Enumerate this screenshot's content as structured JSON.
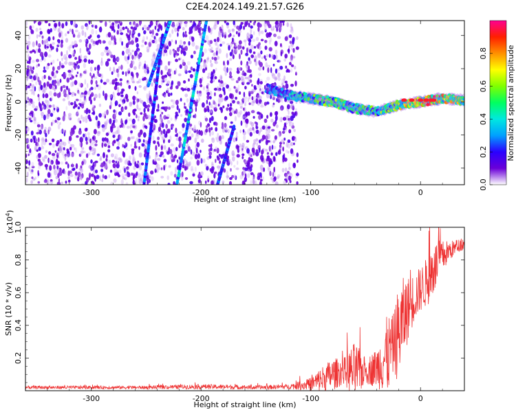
{
  "title": "C2E4.2024.149.21.57.G26",
  "chart_data": [
    {
      "type": "heatmap",
      "xlabel": "Height of straight line (km)",
      "ylabel": "Frequency (Hz)",
      "xlim": [
        -360,
        40
      ],
      "ylim": [
        -50,
        49
      ],
      "xticks": [
        -300,
        -200,
        -100,
        0
      ],
      "yticks": [
        -40,
        -20,
        0,
        20,
        40
      ],
      "grid": false,
      "colorbar": {
        "label": "Normalized spectral amplitude",
        "range": [
          0,
          1
        ],
        "ticks": [
          "0.0",
          "0.2",
          "0.4",
          "0.6",
          "0.8"
        ],
        "colors": [
          "#ffffff",
          "#6a00d8",
          "#2a00ff",
          "#00a0ff",
          "#00e8e0",
          "#00ff60",
          "#7fff00",
          "#ffff00",
          "#ff9000",
          "#ff2000",
          "#ff0090"
        ]
      },
      "features": {
        "noise_region_x": [
          -360,
          -112
        ],
        "main_signal": {
          "x": [
            -140,
            -120,
            -100,
            -80,
            -60,
            -40,
            -20,
            0,
            20,
            40
          ],
          "y": [
            8,
            4,
            2,
            0,
            -4,
            -6,
            -2,
            0,
            2,
            1
          ],
          "amplitude": [
            0.25,
            0.35,
            0.5,
            0.55,
            0.5,
            0.5,
            0.6,
            0.75,
            0.8,
            0.6
          ]
        },
        "streaks": [
          {
            "x": [
              -252,
              -235
            ],
            "y": [
              -50,
              40
            ],
            "amplitude": 0.2
          },
          {
            "x": [
              -222,
              -195
            ],
            "y": [
              -50,
              49
            ],
            "amplitude": 0.3
          },
          {
            "x": [
              -185,
              -170
            ],
            "y": [
              -50,
              -15
            ],
            "amplitude": 0.2
          },
          {
            "x": [
              -248,
              -228
            ],
            "y": [
              10,
              49
            ],
            "amplitude": 0.25
          }
        ]
      }
    },
    {
      "type": "line",
      "xlabel": "Height of straight line (km)",
      "ylabel": "SNR (10 * v/v)",
      "yscale_label": "(x10",
      "yscale_exp": "4",
      "xlim": [
        -360,
        40
      ],
      "ylim": [
        0,
        1.0
      ],
      "xticks": [
        -300,
        -200,
        -100,
        0
      ],
      "yticks": [
        0.2,
        0.4,
        0.6,
        0.8,
        1.0
      ],
      "grid": false,
      "series": [
        {
          "color": "#ee3333",
          "x": [
            -360,
            -300,
            -250,
            -200,
            -150,
            -120,
            -100,
            -90,
            -80,
            -70,
            -60,
            -50,
            -40,
            -30,
            -25,
            -20,
            -15,
            -10,
            -5,
            0,
            5,
            10,
            15,
            20,
            25,
            30,
            35,
            40
          ],
          "mean": [
            0.02,
            0.02,
            0.02,
            0.025,
            0.02,
            0.025,
            0.04,
            0.07,
            0.1,
            0.12,
            0.12,
            0.12,
            0.14,
            0.22,
            0.28,
            0.35,
            0.45,
            0.52,
            0.58,
            0.62,
            0.66,
            0.72,
            0.78,
            0.82,
            0.85,
            0.87,
            0.89,
            0.9
          ],
          "spread": [
            0.01,
            0.01,
            0.01,
            0.015,
            0.012,
            0.015,
            0.04,
            0.08,
            0.1,
            0.08,
            0.18,
            0.08,
            0.12,
            0.25,
            0.18,
            0.3,
            0.25,
            0.18,
            0.15,
            0.14,
            0.15,
            0.18,
            0.14,
            0.1,
            0.07,
            0.05,
            0.04,
            0.04
          ]
        }
      ]
    }
  ]
}
